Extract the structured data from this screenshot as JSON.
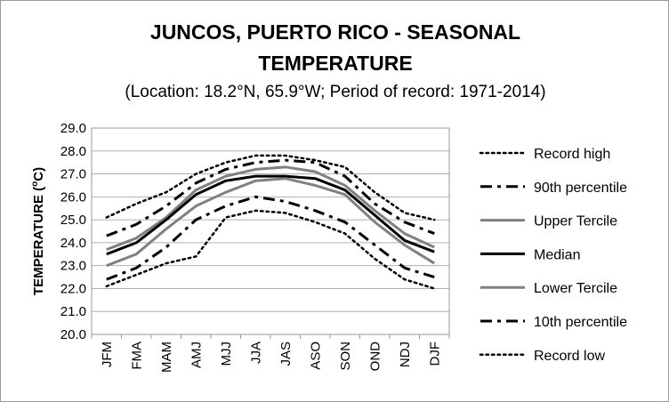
{
  "chart_data": {
    "type": "line",
    "title": "JUNCOS, PUERTO RICO - SEASONAL TEMPERATURE",
    "title_lines": [
      "JUNCOS, PUERTO RICO - SEASONAL",
      "TEMPERATURE"
    ],
    "subtitle": "(Location: 18.2°N, 65.9°W; Period of record: 1971-2014)",
    "ylabel": "TEMPERATURE (ºC)",
    "ylabel_main": "TEMPERATURE (",
    "ylabel_sup": "o",
    "ylabel_end": "C)",
    "xlabel": "",
    "ylim": [
      20.0,
      29.0
    ],
    "yticks": [
      "20.0",
      "21.0",
      "22.0",
      "23.0",
      "24.0",
      "25.0",
      "26.0",
      "27.0",
      "28.0",
      "29.0"
    ],
    "grid": "horizontal",
    "legend_position": "right",
    "categories": [
      "JFM",
      "FMA",
      "MAM",
      "AMJ",
      "MJJ",
      "JJA",
      "JAS",
      "ASO",
      "SON",
      "OND",
      "NDJ",
      "DJF"
    ],
    "series": [
      {
        "name": "Record high",
        "style": "dotted",
        "color": "#000000",
        "values": [
          25.1,
          25.7,
          26.2,
          27.0,
          27.5,
          27.8,
          27.8,
          27.6,
          27.3,
          26.2,
          25.3,
          25.0
        ]
      },
      {
        "name": "90th percentile",
        "style": "dashdot",
        "color": "#000000",
        "values": [
          24.3,
          24.8,
          25.6,
          26.6,
          27.2,
          27.5,
          27.6,
          27.5,
          26.9,
          25.7,
          24.9,
          24.4
        ]
      },
      {
        "name": "Upper Tercile",
        "style": "solid",
        "color": "#808080",
        "values": [
          23.7,
          24.2,
          25.1,
          26.3,
          26.9,
          27.2,
          27.3,
          27.1,
          26.5,
          25.4,
          24.4,
          23.8
        ]
      },
      {
        "name": "Median",
        "style": "solid",
        "color": "#000000",
        "values": [
          23.5,
          24.0,
          25.0,
          26.1,
          26.7,
          26.9,
          26.9,
          26.8,
          26.3,
          25.2,
          24.1,
          23.6
        ]
      },
      {
        "name": "Lower Tercile",
        "style": "solid",
        "color": "#808080",
        "values": [
          23.0,
          23.5,
          24.6,
          25.6,
          26.2,
          26.7,
          26.8,
          26.5,
          26.1,
          24.9,
          23.9,
          23.1
        ]
      },
      {
        "name": "10th percentile",
        "style": "dashdot",
        "color": "#000000",
        "values": [
          22.4,
          22.9,
          23.8,
          25.0,
          25.6,
          26.0,
          25.8,
          25.4,
          24.9,
          23.9,
          22.9,
          22.5
        ]
      },
      {
        "name": "Record low",
        "style": "dotted",
        "color": "#000000",
        "values": [
          22.1,
          22.6,
          23.1,
          23.4,
          25.1,
          25.4,
          25.3,
          24.9,
          24.4,
          23.3,
          22.4,
          22.0
        ]
      }
    ]
  }
}
